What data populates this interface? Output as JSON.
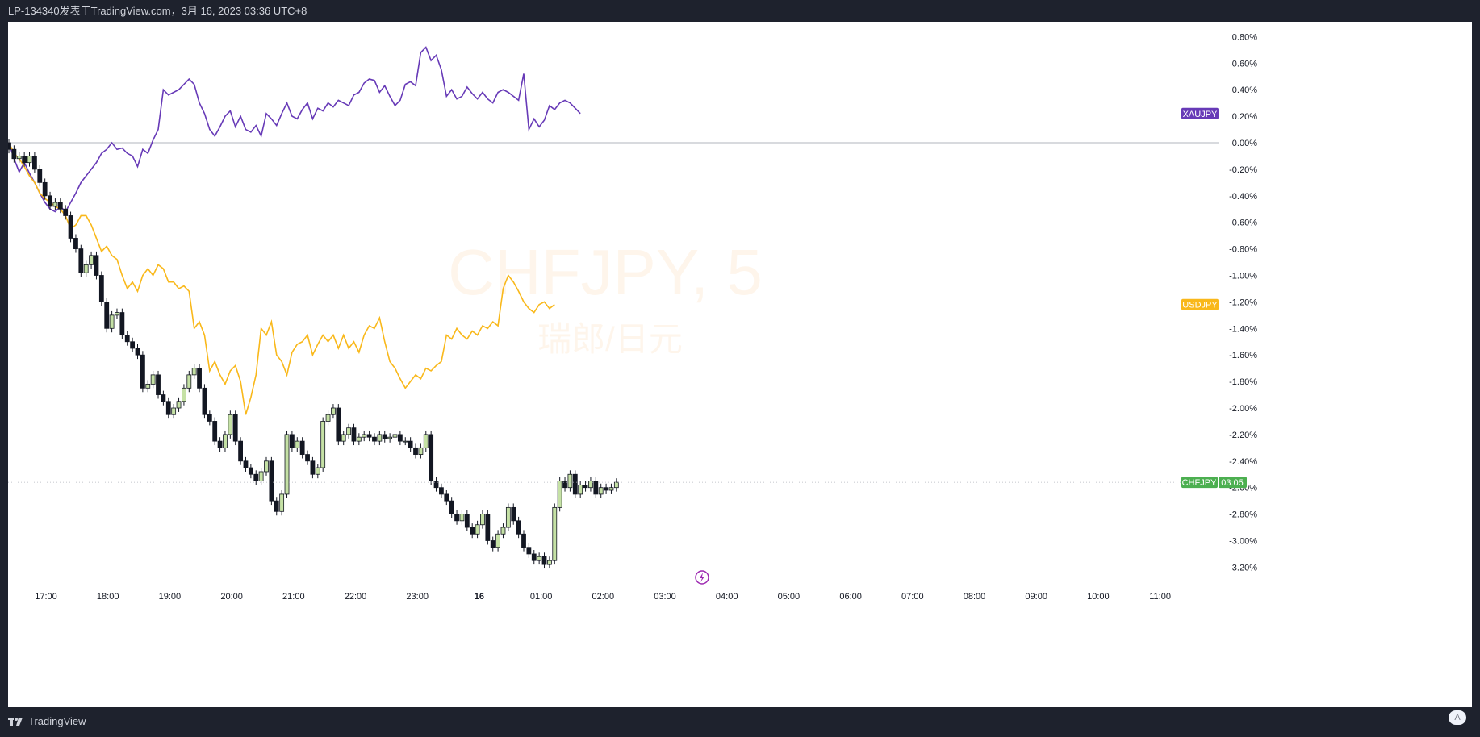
{
  "header": {
    "publisher_text": "LP-134340发表于TradingView.com，3月 16, 2023 03:36 UTC+8"
  },
  "footer": {
    "brand": "TradingView",
    "auto_label": "A"
  },
  "watermark": {
    "symbol": "CHFJPY, 5",
    "description": "瑞郎/日元"
  },
  "colors": {
    "xaujpy": "#673ab7",
    "usdjpy": "#f9b81a",
    "candle_up": "#c5e1a5",
    "candle_down": "#131722",
    "label_chfjpy": "#4caf50",
    "watermark": "#f57c00"
  },
  "chart_data": {
    "type": "line",
    "title": "CHFJPY, 5",
    "y_unit": "%",
    "ylim": [
      -3.3,
      0.85
    ],
    "y_ticks": [
      "0.80%",
      "0.60%",
      "0.40%",
      "0.20%",
      "0.00%",
      "-0.20%",
      "-0.40%",
      "-0.60%",
      "-0.80%",
      "-1.00%",
      "-1.20%",
      "-1.40%",
      "-1.60%",
      "-1.80%",
      "-2.00%",
      "-2.20%",
      "-2.40%",
      "-2.60%",
      "-2.80%",
      "-3.00%",
      "-3.20%"
    ],
    "x_ticks": [
      "17:00",
      "18:00",
      "19:00",
      "20:00",
      "21:00",
      "22:00",
      "23:00",
      "16",
      "01:00",
      "02:00",
      "03:00",
      "04:00",
      "05:00",
      "06:00",
      "07:00",
      "08:00",
      "09:00",
      "10:00",
      "11:00"
    ],
    "x_start": "16:40",
    "bar_interval_min": 5,
    "series": [
      {
        "name": "XAUJPY",
        "label": "XAUJPY",
        "color": "#673ab7",
        "values": [
          0.0,
          -0.12,
          -0.22,
          -0.15,
          -0.23,
          -0.3,
          -0.38,
          -0.45,
          -0.5,
          -0.52,
          -0.48,
          -0.52,
          -0.45,
          -0.38,
          -0.3,
          -0.25,
          -0.2,
          -0.15,
          -0.08,
          -0.05,
          0.0,
          -0.05,
          -0.04,
          -0.08,
          -0.1,
          -0.18,
          -0.05,
          -0.08,
          0.02,
          0.1,
          0.4,
          0.36,
          0.38,
          0.4,
          0.44,
          0.48,
          0.44,
          0.3,
          0.22,
          0.1,
          0.05,
          0.12,
          0.2,
          0.24,
          0.12,
          0.2,
          0.1,
          0.08,
          0.13,
          0.05,
          0.22,
          0.18,
          0.13,
          0.22,
          0.3,
          0.2,
          0.18,
          0.25,
          0.3,
          0.18,
          0.26,
          0.24,
          0.3,
          0.27,
          0.32,
          0.3,
          0.28,
          0.36,
          0.38,
          0.45,
          0.48,
          0.47,
          0.38,
          0.43,
          0.35,
          0.28,
          0.32,
          0.44,
          0.46,
          0.43,
          0.68,
          0.72,
          0.62,
          0.66,
          0.55,
          0.35,
          0.4,
          0.33,
          0.35,
          0.42,
          0.37,
          0.33,
          0.38,
          0.33,
          0.3,
          0.38,
          0.4,
          0.38,
          0.35,
          0.32,
          0.52,
          0.1,
          0.18,
          0.12,
          0.17,
          0.28,
          0.25,
          0.3,
          0.32,
          0.3,
          0.26,
          0.22
        ],
        "last_label": "0.22%"
      },
      {
        "name": "USDJPY",
        "label": "USDJPY",
        "color": "#f9b81a",
        "values": [
          0.0,
          -0.08,
          -0.12,
          -0.18,
          -0.25,
          -0.3,
          -0.38,
          -0.42,
          -0.45,
          -0.48,
          -0.5,
          -0.55,
          -0.65,
          -0.62,
          -0.55,
          -0.55,
          -0.62,
          -0.72,
          -0.82,
          -0.78,
          -0.85,
          -0.88,
          -1.0,
          -1.1,
          -1.05,
          -1.12,
          -1.0,
          -0.95,
          -1.0,
          -0.92,
          -0.95,
          -1.05,
          -1.05,
          -1.1,
          -1.08,
          -1.12,
          -1.4,
          -1.35,
          -1.45,
          -1.72,
          -1.65,
          -1.75,
          -1.82,
          -1.72,
          -1.68,
          -1.8,
          -2.05,
          -1.92,
          -1.75,
          -1.4,
          -1.45,
          -1.35,
          -1.6,
          -1.65,
          -1.75,
          -1.58,
          -1.52,
          -1.5,
          -1.45,
          -1.6,
          -1.52,
          -1.45,
          -1.5,
          -1.45,
          -1.55,
          -1.45,
          -1.55,
          -1.5,
          -1.58,
          -1.45,
          -1.38,
          -1.4,
          -1.32,
          -1.5,
          -1.65,
          -1.7,
          -1.78,
          -1.85,
          -1.8,
          -1.75,
          -1.78,
          -1.7,
          -1.72,
          -1.68,
          -1.65,
          -1.45,
          -1.48,
          -1.4,
          -1.45,
          -1.48,
          -1.42,
          -1.45,
          -1.38,
          -1.4,
          -1.35,
          -1.38,
          -1.1,
          -1.0,
          -1.05,
          -1.12,
          -1.2,
          -1.25,
          -1.28,
          -1.22,
          -1.2,
          -1.25,
          -1.22
        ],
        "last_label": "-1.22%"
      },
      {
        "name": "CHFJPY",
        "label": "CHFJPY",
        "type": "candlestick",
        "last_label": "03:05",
        "close": [
          -0.05,
          -0.12,
          -0.1,
          -0.15,
          -0.1,
          -0.2,
          -0.3,
          -0.4,
          -0.48,
          -0.45,
          -0.5,
          -0.55,
          -0.72,
          -0.8,
          -0.98,
          -0.92,
          -0.85,
          -1.0,
          -1.2,
          -1.4,
          -1.3,
          -1.28,
          -1.45,
          -1.5,
          -1.55,
          -1.6,
          -1.85,
          -1.82,
          -1.75,
          -1.9,
          -1.95,
          -2.05,
          -2.0,
          -1.95,
          -1.85,
          -1.75,
          -1.7,
          -1.85,
          -2.05,
          -2.1,
          -2.25,
          -2.3,
          -2.2,
          -2.05,
          -2.25,
          -2.4,
          -2.45,
          -2.5,
          -2.55,
          -2.48,
          -2.4,
          -2.7,
          -2.78,
          -2.65,
          -2.2,
          -2.3,
          -2.25,
          -2.35,
          -2.4,
          -2.5,
          -2.45,
          -2.1,
          -2.05,
          -2.0,
          -2.25,
          -2.2,
          -2.15,
          -2.25,
          -2.22,
          -2.2,
          -2.22,
          -2.25,
          -2.2,
          -2.23,
          -2.22,
          -2.2,
          -2.25,
          -2.25,
          -2.3,
          -2.35,
          -2.3,
          -2.2,
          -2.55,
          -2.6,
          -2.65,
          -2.7,
          -2.8,
          -2.85,
          -2.8,
          -2.9,
          -2.95,
          -2.88,
          -2.8,
          -3.0,
          -3.05,
          -2.95,
          -2.9,
          -2.75,
          -2.85,
          -2.95,
          -3.05,
          -3.1,
          -3.15,
          -3.12,
          -3.18,
          -3.15,
          -2.75,
          -2.55,
          -2.6,
          -2.5,
          -2.65,
          -2.58,
          -2.6,
          -2.55,
          -2.65,
          -2.6,
          -2.62,
          -2.6,
          -2.56
        ]
      }
    ]
  }
}
